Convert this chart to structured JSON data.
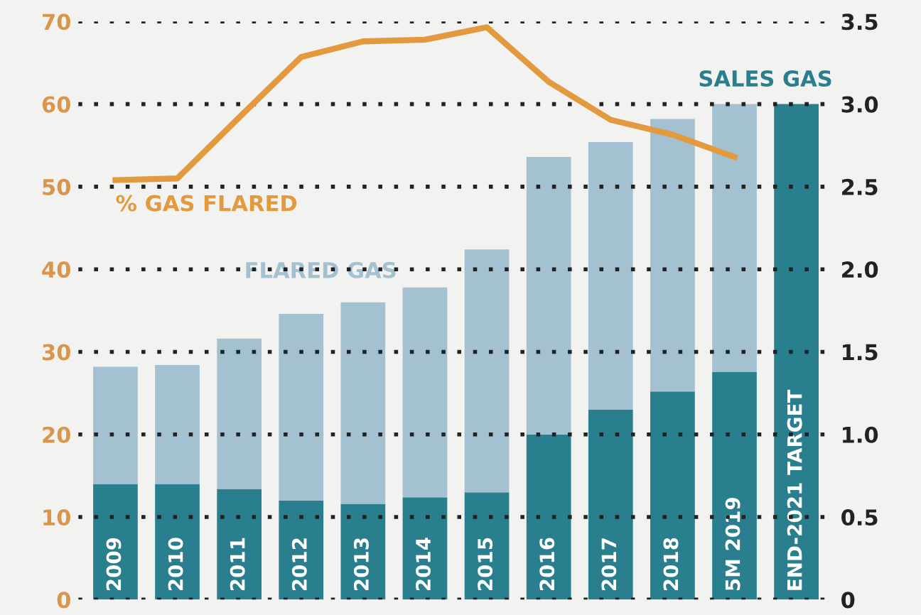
{
  "chart_data": {
    "type": "bar",
    "stacked": true,
    "categories": [
      "2009",
      "2010",
      "2011",
      "2012",
      "2013",
      "2014",
      "2015",
      "2016",
      "2017",
      "2018",
      "5M 2019",
      "END-2021 TARGET"
    ],
    "series": [
      {
        "name": "SALES GAS",
        "color": "#2a7f8f",
        "axis": "y2",
        "values": [
          0.7,
          0.7,
          0.67,
          0.6,
          0.58,
          0.62,
          0.65,
          1.0,
          1.15,
          1.26,
          1.38,
          3.0
        ]
      },
      {
        "name": "FLARED GAS",
        "color": "#a3c1d0",
        "axis": "y2",
        "values": [
          0.71,
          0.72,
          0.91,
          1.13,
          1.22,
          1.27,
          1.47,
          1.68,
          1.62,
          1.65,
          1.62,
          null
        ]
      },
      {
        "name": "% GAS FLARED",
        "type": "line",
        "color": "#e39a3e",
        "axis": "y",
        "values": [
          50.8,
          51.0,
          58.4,
          65.7,
          67.6,
          67.8,
          69.3,
          62.7,
          58.1,
          56.3,
          53.6,
          null
        ]
      }
    ],
    "ylim": [
      0,
      70
    ],
    "yticks": [
      0,
      10,
      20,
      30,
      40,
      50,
      60,
      70
    ],
    "y2lim": [
      0,
      3.5
    ],
    "y2ticks": [
      0,
      0.5,
      {
        "value": 1,
        "label": "1.0"
      },
      1.5,
      {
        "value": 2,
        "label": "2.0"
      },
      2.5,
      {
        "value": 3,
        "label": "3.0"
      },
      3.5
    ],
    "grid": "y",
    "legend": false,
    "marker": "none",
    "line_style": "solid"
  }
}
